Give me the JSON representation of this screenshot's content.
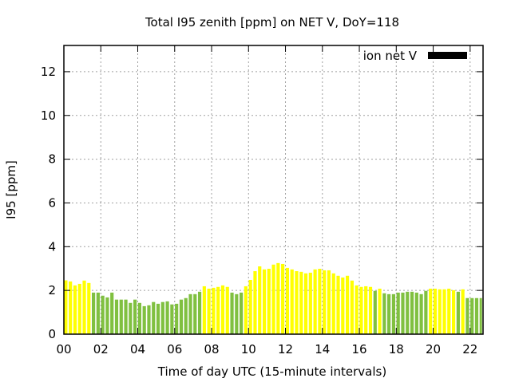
{
  "chart_data": {
    "type": "bar",
    "title": "Total I95 zenith [ppm] on NET V, DoY=118",
    "xlabel": "Time of day UTC (15-minute intervals)",
    "ylabel": "I95 [ppm]",
    "xlim": [
      0,
      22.7
    ],
    "ylim": [
      0,
      13.2
    ],
    "grid": true,
    "legend_position": "top-right",
    "x_ticks": [
      0,
      2,
      4,
      6,
      8,
      10,
      12,
      14,
      16,
      18,
      20,
      22
    ],
    "x_tick_labels": [
      "00",
      "02",
      "04",
      "06",
      "08",
      "10",
      "12",
      "14",
      "16",
      "18",
      "20",
      "22"
    ],
    "y_ticks": [
      0,
      2,
      4,
      6,
      8,
      10,
      12
    ],
    "y_tick_labels": [
      "0",
      "2",
      "4",
      "6",
      "8",
      "10",
      "12"
    ],
    "interval_hours": 0.25,
    "series": [
      {
        "name": "ion net V",
        "legend_color": "#000000",
        "values": [
          2.46,
          2.41,
          2.23,
          2.3,
          2.45,
          2.34,
          1.9,
          1.9,
          1.76,
          1.68,
          1.9,
          1.58,
          1.58,
          1.58,
          1.43,
          1.58,
          1.43,
          1.28,
          1.32,
          1.47,
          1.39,
          1.47,
          1.5,
          1.36,
          1.39,
          1.58,
          1.65,
          1.83,
          1.83,
          1.94,
          2.19,
          2.08,
          2.12,
          2.16,
          2.23,
          2.16,
          1.9,
          1.83,
          1.9,
          2.19,
          2.48,
          2.88,
          3.1,
          2.96,
          2.99,
          3.18,
          3.25,
          3.21,
          3.03,
          2.96,
          2.88,
          2.85,
          2.78,
          2.81,
          2.96,
          2.99,
          2.92,
          2.92,
          2.78,
          2.67,
          2.59,
          2.67,
          2.45,
          2.23,
          2.16,
          2.19,
          2.16,
          1.98,
          2.08,
          1.87,
          1.83,
          1.83,
          1.9,
          1.9,
          1.94,
          1.94,
          1.9,
          1.83,
          1.98,
          2.08,
          2.08,
          2.05,
          2.05,
          2.08,
          2.01,
          1.94,
          2.05,
          1.65,
          1.65,
          1.65,
          1.65,
          1.72
        ],
        "bar_colors": [
          "Y",
          "Y",
          "Y",
          "Y",
          "Y",
          "Y",
          "G",
          "G",
          "G",
          "G",
          "G",
          "G",
          "G",
          "G",
          "G",
          "G",
          "G",
          "G",
          "G",
          "G",
          "G",
          "G",
          "G",
          "G",
          "G",
          "G",
          "G",
          "G",
          "G",
          "G",
          "Y",
          "Y",
          "Y",
          "Y",
          "Y",
          "Y",
          "G",
          "G",
          "G",
          "Y",
          "Y",
          "Y",
          "Y",
          "Y",
          "Y",
          "Y",
          "Y",
          "Y",
          "Y",
          "Y",
          "Y",
          "Y",
          "Y",
          "Y",
          "Y",
          "Y",
          "Y",
          "Y",
          "Y",
          "Y",
          "Y",
          "Y",
          "Y",
          "Y",
          "Y",
          "Y",
          "Y",
          "G",
          "Y",
          "G",
          "G",
          "G",
          "G",
          "G",
          "G",
          "G",
          "G",
          "G",
          "G",
          "Y",
          "Y",
          "Y",
          "Y",
          "Y",
          "Y",
          "G",
          "Y",
          "G",
          "G",
          "G",
          "G",
          "G"
        ]
      }
    ],
    "colors": {
      "Y": "#ffff00",
      "G": "#80c040"
    }
  }
}
